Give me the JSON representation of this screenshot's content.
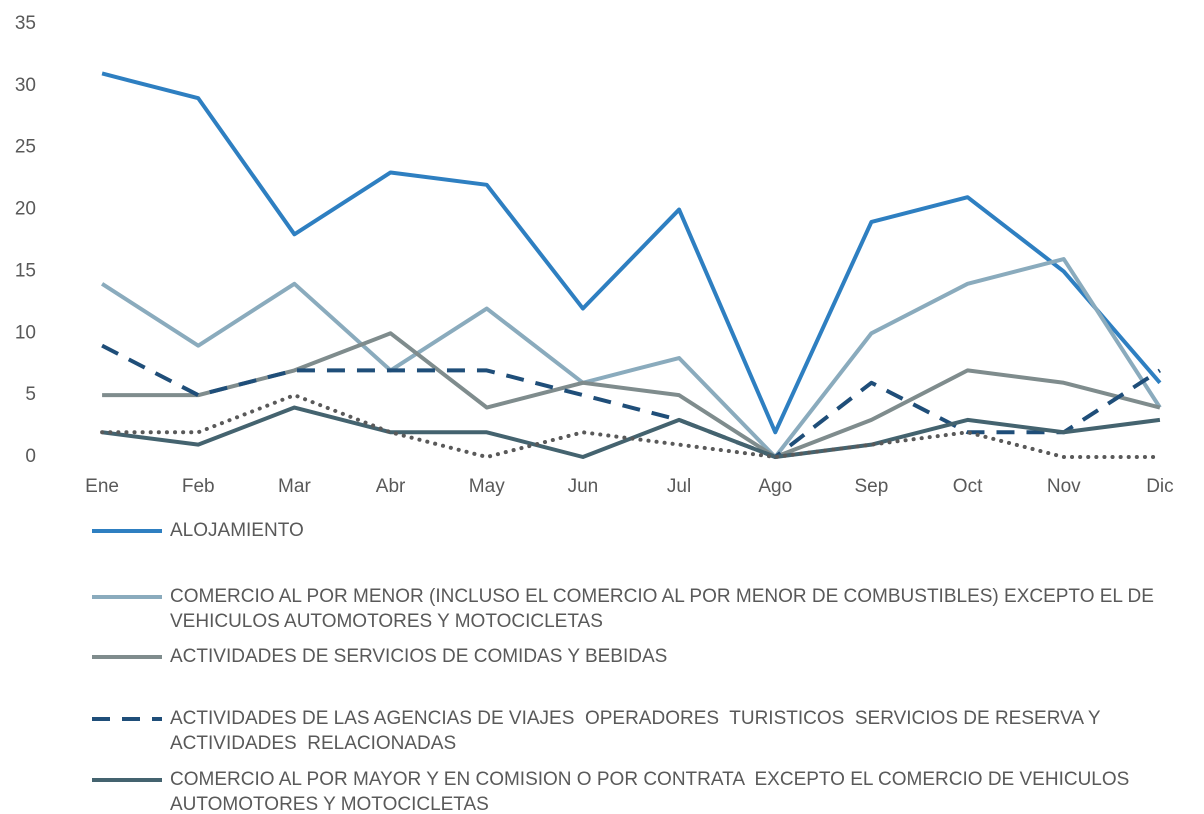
{
  "chart_data": {
    "type": "line",
    "categories": [
      "Ene",
      "Feb",
      "Mar",
      "Abr",
      "May",
      "Jun",
      "Jul",
      "Ago",
      "Sep",
      "Oct",
      "Nov",
      "Dic"
    ],
    "ylim": [
      0,
      35
    ],
    "yticks": [
      0,
      5,
      10,
      15,
      20,
      25,
      30,
      35
    ],
    "grid": false,
    "series": [
      {
        "name": "ALOJAMIENTO",
        "color": "#2e7fc1",
        "style": "solid",
        "values": [
          31,
          29,
          18,
          23,
          22,
          12,
          20,
          2,
          19,
          21,
          15,
          6
        ]
      },
      {
        "name": "COMERCIO AL POR MENOR (INCLUSO EL COMERCIO AL POR MENOR DE COMBUSTIBLES) EXCEPTO EL DE  VEHICULOS AUTOMOTORES Y MOTOCICLETAS",
        "color": "#8aabbd",
        "style": "solid",
        "values": [
          14,
          9,
          14,
          7,
          12,
          6,
          8,
          0,
          10,
          14,
          16,
          4
        ]
      },
      {
        "name": "ACTIVIDADES DE SERVICIOS DE COMIDAS Y BEBIDAS",
        "color": "#7f8c8d",
        "style": "solid",
        "values": [
          5,
          5,
          7,
          10,
          4,
          6,
          5,
          0,
          3,
          7,
          6,
          4
        ]
      },
      {
        "name": "ACTIVIDADES DE LAS AGENCIAS DE VIAJES  OPERADORES  TURISTICOS  SERVICIOS DE RESERVA Y ACTIVIDADES  RELACIONADAS",
        "color": "#1f4e79",
        "style": "dashed",
        "values": [
          9,
          5,
          7,
          7,
          7,
          5,
          3,
          0,
          6,
          2,
          2,
          7
        ]
      },
      {
        "name": "COMERCIO AL POR MAYOR Y EN COMISION O POR CONTRATA  EXCEPTO EL COMERCIO DE VEHICULOS AUTOMOTORES Y MOTOCICLETAS",
        "color": "#44636f",
        "style": "solid",
        "values": [
          2,
          1,
          4,
          2,
          2,
          0,
          3,
          0,
          1,
          3,
          2,
          3
        ]
      },
      {
        "color": "#595959",
        "style": "dotted",
        "values": [
          2,
          2,
          5,
          2,
          0,
          2,
          1,
          0,
          1,
          2,
          0,
          0
        ]
      }
    ]
  }
}
